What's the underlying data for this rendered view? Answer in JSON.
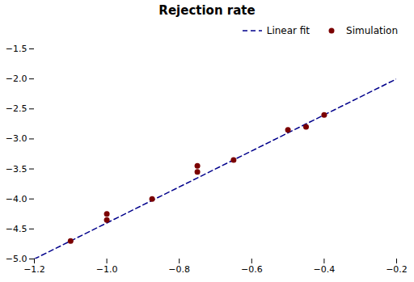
{
  "chart_data": {
    "type": "scatter",
    "title": "Rejection rate",
    "xlim": [
      -1.2,
      -0.2
    ],
    "ylim": [
      -5.0,
      -1.5
    ],
    "xticks": [
      {
        "value": -1.2,
        "label": "−1.2"
      },
      {
        "value": -1.0,
        "label": "−1.0"
      },
      {
        "value": -0.8,
        "label": "−0.8"
      },
      {
        "value": -0.6,
        "label": "−0.6"
      },
      {
        "value": -0.4,
        "label": "−0.4"
      },
      {
        "value": -0.2,
        "label": "−0.2"
      }
    ],
    "yticks": [
      {
        "value": -5.0,
        "label": "−5.0"
      },
      {
        "value": -4.5,
        "label": "−4.5"
      },
      {
        "value": -4.0,
        "label": "−4.0"
      },
      {
        "value": -3.5,
        "label": "−3.5"
      },
      {
        "value": -3.0,
        "label": "−3.0"
      },
      {
        "value": -2.5,
        "label": "−2.5"
      },
      {
        "value": -2.0,
        "label": "−2.0"
      },
      {
        "value": -1.5,
        "label": "−1.5"
      }
    ],
    "grid": false,
    "legend": "upper right",
    "series": [
      {
        "name": "Linear fit",
        "type": "line",
        "color": "#00008B",
        "line_style": "dashed",
        "x": [
          -1.2,
          -0.2
        ],
        "values": [
          -5.0,
          -2.0
        ]
      },
      {
        "name": "Simulation",
        "type": "scatter",
        "color": "#7B0000",
        "marker": "circle",
        "x": [
          -1.1,
          -1.0,
          -1.0,
          -0.875,
          -0.75,
          -0.75,
          -0.65,
          -0.5,
          -0.45,
          -0.4
        ],
        "values": [
          -4.7,
          -4.35,
          -4.25,
          -4.0,
          -3.55,
          -3.45,
          -3.35,
          -2.85,
          -2.8,
          -2.6
        ]
      }
    ]
  }
}
